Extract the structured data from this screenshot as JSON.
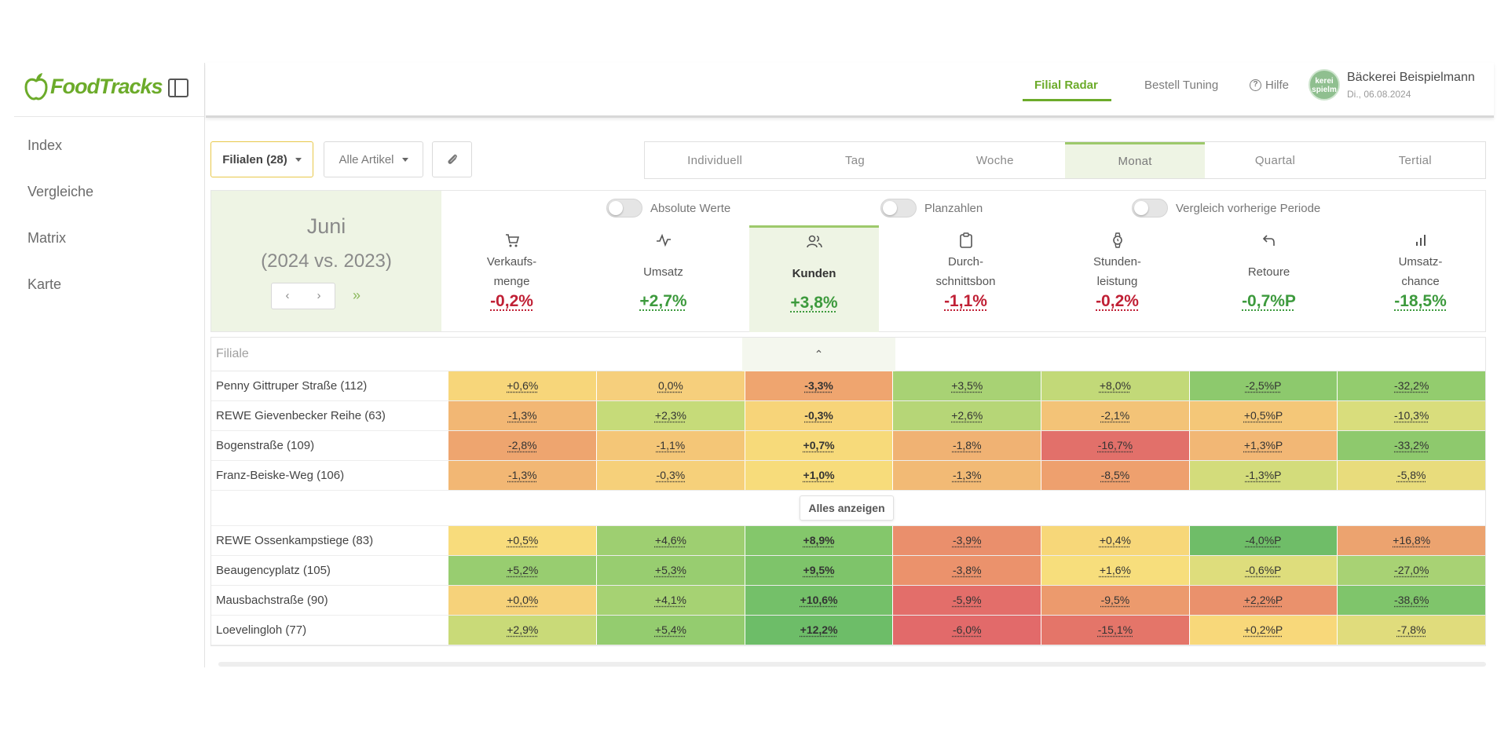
{
  "app": {
    "logo_text": "FoodTracks"
  },
  "sidebar": {
    "items": [
      {
        "label": "Index"
      },
      {
        "label": "Vergleiche"
      },
      {
        "label": "Matrix"
      },
      {
        "label": "Karte"
      }
    ]
  },
  "header": {
    "nav": [
      {
        "label": "Filial Radar",
        "active": true
      },
      {
        "label": "Bestell Tuning",
        "active": false
      }
    ],
    "help_label": "Hilfe",
    "avatar_text": "kerei spielm",
    "user_name": "Bäckerei Beispielmann",
    "user_date": "Di., 06.08.2024"
  },
  "toolbar": {
    "filialen": "Filialen (28)",
    "artikel": "Alle Artikel",
    "attach_icon": "paperclip-icon"
  },
  "periods": [
    {
      "label": "Individuell",
      "active": false
    },
    {
      "label": "Tag",
      "active": false
    },
    {
      "label": "Woche",
      "active": false
    },
    {
      "label": "Monat",
      "active": true
    },
    {
      "label": "Quartal",
      "active": false
    },
    {
      "label": "Tertial",
      "active": false
    }
  ],
  "period_box": {
    "month": "Juni",
    "comparison": "(2024 vs. 2023)"
  },
  "toggles": [
    {
      "label": "Absolute Werte",
      "on": false
    },
    {
      "label": "Planzahlen",
      "on": false
    },
    {
      "label": "Vergleich vorherige Periode",
      "on": false
    }
  ],
  "kpis": [
    {
      "label": "Verkaufs-\nmenge",
      "value": "-0,2%",
      "trend": "neg",
      "icon": "cart-icon",
      "active": false
    },
    {
      "label": "Umsatz",
      "value": "+2,7%",
      "trend": "pos",
      "icon": "pulse-icon",
      "active": false
    },
    {
      "label": "Kunden",
      "value": "+3,8%",
      "trend": "pos",
      "icon": "users-icon",
      "active": true
    },
    {
      "label": "Durch-\nschnittsbon",
      "value": "-1,1%",
      "trend": "neg",
      "icon": "clipboard-icon",
      "active": false
    },
    {
      "label": "Stunden-\nleistung",
      "value": "-0,2%",
      "trend": "neg",
      "icon": "watch-icon",
      "active": false
    },
    {
      "label": "Retoure",
      "value": "-0,7%P",
      "trend": "pos",
      "icon": "undo-icon",
      "active": false
    },
    {
      "label": "Umsatz-\nchance",
      "value": "-18,5%",
      "trend": "pos",
      "icon": "bar-chart-icon",
      "active": false
    }
  ],
  "table": {
    "header_label": "Filiale",
    "show_all": "Alles anzeigen",
    "top_rows": [
      {
        "name": "Penny Gittruper Straße (112)",
        "values": [
          "+0,6%",
          "0,0%",
          "-3,3%",
          "+3,5%",
          "+8,0%",
          "-2,5%P",
          "-32,2%"
        ],
        "colors": [
          "#f7d67a",
          "#f6cf7c",
          "#efa56f",
          "#a8d274",
          "#c2d978",
          "#8dc96d",
          "#93cc6e"
        ]
      },
      {
        "name": "REWE Gievenbecker Reihe (63)",
        "values": [
          "-1,3%",
          "+2,3%",
          "-0,3%",
          "+2,6%",
          "-2,1%",
          "+0,5%P",
          "-10,3%"
        ],
        "colors": [
          "#f2b774",
          "#c6db79",
          "#f7d479",
          "#b6d677",
          "#f3c377",
          "#f4c778",
          "#d9dd7c"
        ]
      },
      {
        "name": "Bogenstraße (109)",
        "values": [
          "-2,8%",
          "-1,1%",
          "+0,7%",
          "-1,8%",
          "-16,7%",
          "+1,3%P",
          "-33,2%"
        ],
        "colors": [
          "#eea56f",
          "#f4c677",
          "#f7da7a",
          "#f0b273",
          "#e2706a",
          "#f2b775",
          "#8ec96d"
        ]
      },
      {
        "name": "Franz-Beiske-Weg (106)",
        "values": [
          "-1,3%",
          "-0,3%",
          "+1,0%",
          "-1,3%",
          "-8,5%",
          "-1,3%P",
          "-5,8%"
        ],
        "colors": [
          "#f2b774",
          "#f6d07a",
          "#f7dc7b",
          "#f2ba75",
          "#eea06e",
          "#d3dc7b",
          "#e8dc7c"
        ]
      }
    ],
    "bottom_rows": [
      {
        "name": "REWE Ossenkampstiege (83)",
        "values": [
          "+0,5%",
          "+4,6%",
          "+8,9%",
          "-3,9%",
          "+0,4%",
          "-4,0%P",
          "+16,8%"
        ],
        "colors": [
          "#f8dc7c",
          "#9ecf71",
          "#84c76b",
          "#ea8f6c",
          "#f7d779",
          "#6fbd68",
          "#eca36f"
        ]
      },
      {
        "name": "Beaugencyplatz (105)",
        "values": [
          "+5,2%",
          "+5,3%",
          "+9,5%",
          "-3,8%",
          "+1,6%",
          "-0,6%P",
          "-27,0%"
        ],
        "colors": [
          "#98cd70",
          "#98cd70",
          "#7ec46a",
          "#eb926c",
          "#f7de7c",
          "#dedd7c",
          "#a8d274"
        ]
      },
      {
        "name": "Mausbachstraße (90)",
        "values": [
          "+0,0%",
          "+4,1%",
          "+10,6%",
          "-5,9%",
          "-9,5%",
          "+2,2%P",
          "-38,6%"
        ],
        "colors": [
          "#f6d27a",
          "#a6d273",
          "#74c069",
          "#e36e6a",
          "#ec9a6d",
          "#ea916c",
          "#7fc56b"
        ]
      },
      {
        "name": "Loevelingloh (77)",
        "values": [
          "+2,9%",
          "+5,4%",
          "+12,2%",
          "-6,0%",
          "-15,1%",
          "+0,2%P",
          "-7,8%"
        ],
        "colors": [
          "#c9da78",
          "#94cc6f",
          "#6dbd68",
          "#e26a6a",
          "#e47569",
          "#f8d87a",
          "#e0dc7c"
        ]
      }
    ]
  }
}
